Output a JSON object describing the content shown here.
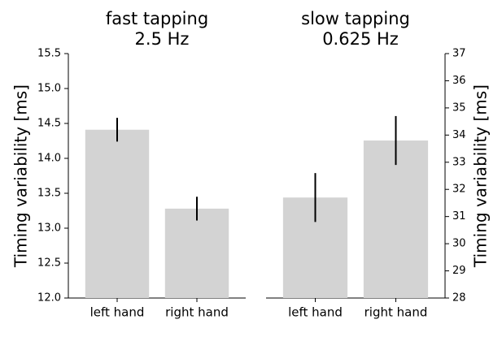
{
  "chart_data": [
    {
      "type": "bar",
      "title": "fast tapping",
      "subtitle": "2.5 Hz",
      "ylabel": "Timing variability [ms]",
      "categories": [
        "left hand",
        "right hand"
      ],
      "values": [
        14.41,
        13.28
      ],
      "errors": [
        0.17,
        0.17
      ],
      "color": "#d3d3d3",
      "error_color": "#000000",
      "yaxis_side": "left",
      "ylim": [
        12.0,
        15.5
      ],
      "yticks": [
        {
          "value": 12,
          "label": "12.0"
        },
        {
          "value": 12.5,
          "label": "12.5"
        },
        {
          "value": 13,
          "label": "13.0"
        },
        {
          "value": 13.5,
          "label": "13.5"
        },
        {
          "value": 14,
          "label": "14.0"
        },
        {
          "value": 14.5,
          "label": "14.5"
        },
        {
          "value": 15,
          "label": "15.0"
        },
        {
          "value": 15.5,
          "label": "15.5"
        }
      ]
    },
    {
      "type": "bar",
      "title": "slow tapping",
      "subtitle": "0.625 Hz",
      "ylabel": "Timing variability [ms]",
      "categories": [
        "left hand",
        "right hand"
      ],
      "values": [
        31.7,
        33.8
      ],
      "errors": [
        0.9,
        0.9
      ],
      "color": "#d3d3d3",
      "error_color": "#000000",
      "yaxis_side": "right",
      "ylim": [
        28,
        37
      ],
      "yticks": [
        28,
        29,
        30,
        31,
        32,
        33,
        34,
        35,
        36,
        37
      ]
    }
  ]
}
